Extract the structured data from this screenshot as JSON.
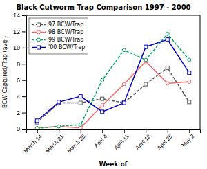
{
  "chart_data": {
    "type": "line",
    "title": "Black Cutworm Trap Comparison 1997 - 2000",
    "xlabel": "Week of",
    "ylabel": "BCW Captured/Trap (avg.)",
    "categories": [
      "March 14",
      "March 21",
      "March 28",
      "April 4",
      "April 11",
      "April 18",
      "April 25",
      "May 2"
    ],
    "series": [
      {
        "name": "97 BCW/Trap",
        "color": "#555555",
        "marker": "square",
        "line_style": "dashed",
        "values": [
          0.8,
          3.2,
          3.2,
          3.7,
          3.2,
          5.5,
          7.5,
          3.3
        ]
      },
      {
        "name": "98 BCW/Trap",
        "color": "#ff6666",
        "marker": "circle",
        "line_style": "solid",
        "values": [
          0.1,
          0.3,
          0.1,
          2.9,
          5.5,
          8.3,
          5.6,
          5.8
        ]
      },
      {
        "name": "99 BCW/Trap",
        "color": "#00aa66",
        "marker": "circle",
        "line_style": "dashed",
        "values": [
          0.05,
          0.3,
          0.5,
          6.0,
          9.7,
          8.5,
          11.7,
          8.5
        ]
      },
      {
        "name": "'00 BCW/Trap",
        "color": "#0000bb",
        "marker": "square",
        "line_style": "solid",
        "values": [
          1.0,
          3.3,
          4.0,
          2.1,
          3.2,
          10.1,
          11.0,
          6.9
        ]
      }
    ],
    "ylim": [
      0,
      14
    ],
    "yticks": [
      0,
      2,
      4,
      6,
      8,
      10,
      12,
      14
    ],
    "legend": "upper left",
    "grid": false
  }
}
